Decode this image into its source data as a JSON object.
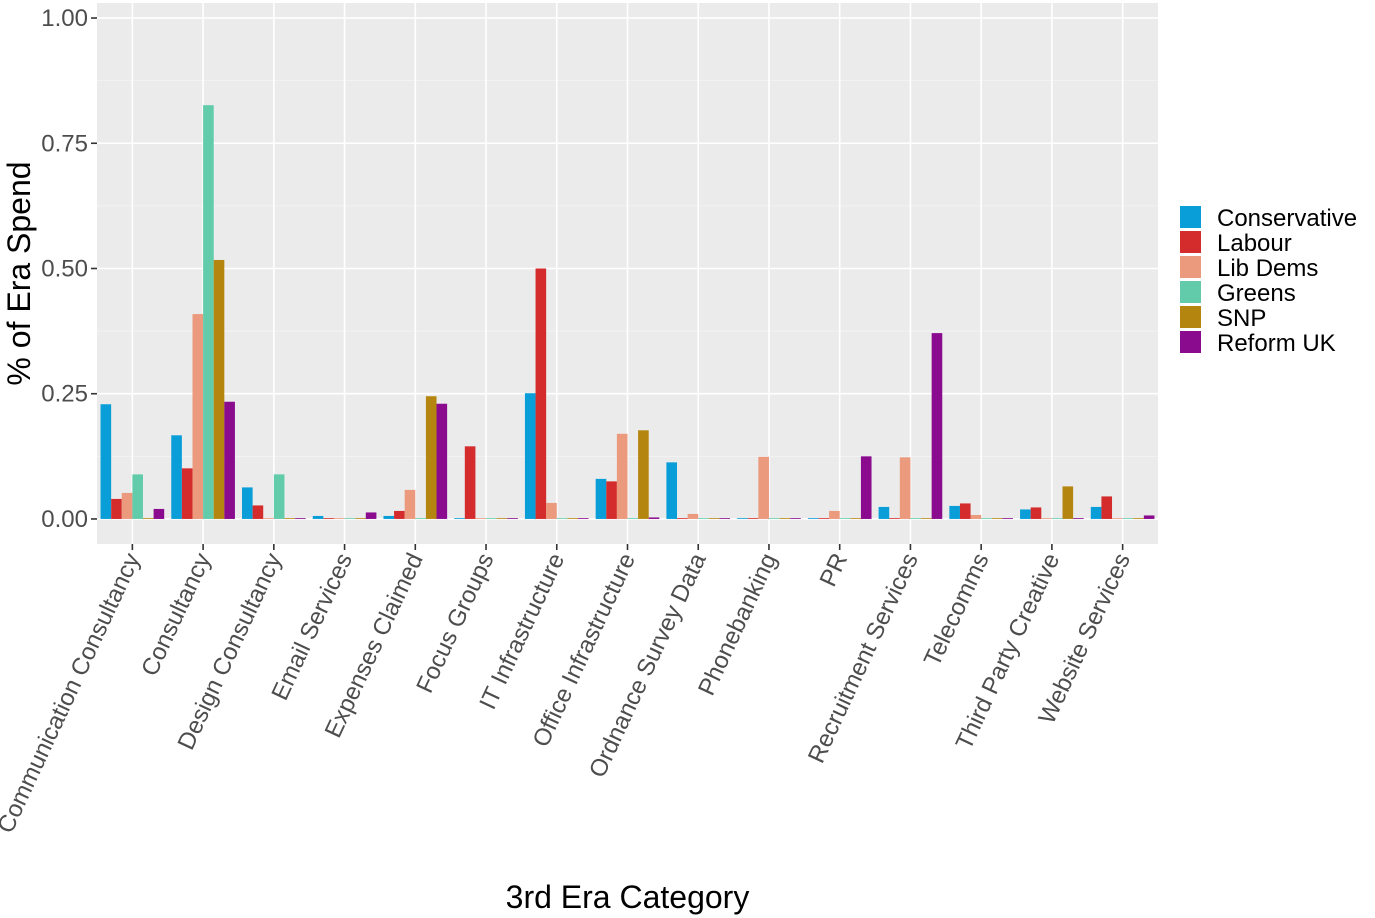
{
  "chart_data": {
    "type": "bar",
    "xlabel": "3rd Era Category",
    "ylabel": "% of Era Spend",
    "ylim": [
      -0.05,
      1.03
    ],
    "yticks": [
      "0.00",
      "0.25",
      "0.50",
      "0.75",
      "1.00"
    ],
    "grid": true,
    "legend_position": "right",
    "categories": [
      "Communication Consultancy",
      "Consultancy",
      "Design Consultancy",
      "Email Services",
      "Expenses Claimed",
      "Focus Groups",
      "IT Infrastructure",
      "Office Infrastructure",
      "Ordnance Survey Data",
      "Phonebanking",
      "PR",
      "Recruitment Services",
      "Telecomms",
      "Third Party Creative",
      "Website Services"
    ],
    "series": [
      {
        "name": "Conservative",
        "color": "#0a9ed9",
        "values": [
          0.229,
          0.167,
          0.063,
          0.006,
          0.006,
          0.0,
          0.251,
          0.08,
          0.113,
          0.0,
          0.0,
          0.024,
          0.026,
          0.019,
          0.024
        ]
      },
      {
        "name": "Labour",
        "color": "#d42c2c",
        "values": [
          0.04,
          0.101,
          0.027,
          0.0,
          0.016,
          0.145,
          0.5,
          0.075,
          0.0,
          0.0,
          0.0,
          0.0,
          0.031,
          0.023,
          0.045
        ]
      },
      {
        "name": "Lib Dems",
        "color": "#eb9a7e",
        "values": [
          0.052,
          0.409,
          0.0,
          0.0,
          0.058,
          0.0,
          0.032,
          0.17,
          0.01,
          0.124,
          0.016,
          0.123,
          0.008,
          0.0,
          0.0
        ]
      },
      {
        "name": "Greens",
        "color": "#62ccaa",
        "values": [
          0.089,
          0.826,
          0.089,
          0.0,
          0.0,
          0.0,
          0.0,
          0.0,
          0.0,
          0.0,
          0.0,
          0.0,
          0.0,
          0.0,
          0.0
        ]
      },
      {
        "name": "SNP",
        "color": "#b5860f",
        "values": [
          0.0,
          0.517,
          0.0,
          0.0,
          0.245,
          0.0,
          0.0,
          0.177,
          0.0,
          0.0,
          0.0,
          0.0,
          0.0,
          0.065,
          0.0
        ]
      },
      {
        "name": "Reform UK",
        "color": "#8b0b8f",
        "values": [
          0.02,
          0.234,
          0.0,
          0.013,
          0.23,
          0.0,
          0.0,
          0.003,
          0.0,
          0.0,
          0.125,
          0.371,
          0.0,
          0.0,
          0.007
        ]
      }
    ]
  }
}
